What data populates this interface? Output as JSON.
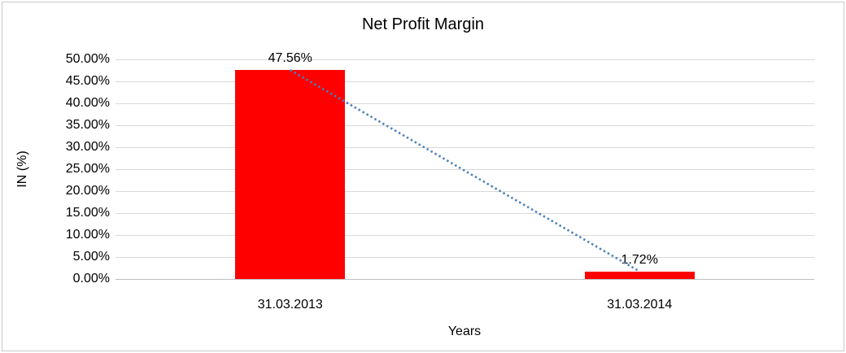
{
  "chart_data": {
    "type": "bar",
    "title": "Net Profit Margin",
    "categories": [
      "31.03.2013",
      "31.03.2014"
    ],
    "values": [
      47.56,
      1.72
    ],
    "data_labels": [
      "47.56%",
      "1.72%"
    ],
    "xlabel": "Years",
    "ylabel": "IN (%)",
    "ylim": [
      0,
      50
    ],
    "ytick_step": 5,
    "ytick_labels": [
      "50.00%",
      "45.00%",
      "40.00%",
      "35.00%",
      "30.00%",
      "25.00%",
      "20.00%",
      "15.00%",
      "10.00%",
      "5.00%",
      "0.00%"
    ],
    "grid": true,
    "legend": "none",
    "bar_color": "#ff0000",
    "gridline_color": "#d9d9d9",
    "axis_line_color": "#bfbfbf",
    "text_color": "#000000",
    "trendline": {
      "type": "linear",
      "style": "dotted",
      "color": "#4a7ebb"
    }
  }
}
